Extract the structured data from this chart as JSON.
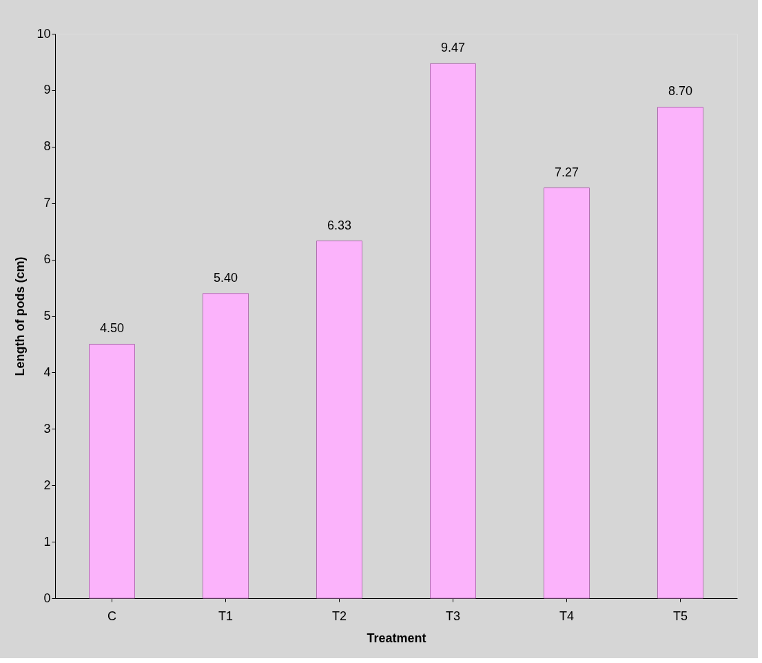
{
  "chart_data": {
    "type": "bar",
    "xlabel": "Treatment",
    "ylabel": "Length of pods (cm)",
    "categories": [
      "C",
      "T1",
      "T2",
      "T3",
      "T4",
      "T5"
    ],
    "values": [
      4.5,
      5.4,
      6.33,
      9.47,
      7.27,
      8.7
    ],
    "value_labels": [
      "4.50",
      "5.40",
      "6.33",
      "9.47",
      "7.27",
      "8.70"
    ],
    "color": "#fbb3fb",
    "ylim": [
      0,
      10
    ],
    "yticks": [
      0,
      1,
      2,
      3,
      4,
      5,
      6,
      7,
      8,
      9,
      10
    ],
    "grid": false
  }
}
